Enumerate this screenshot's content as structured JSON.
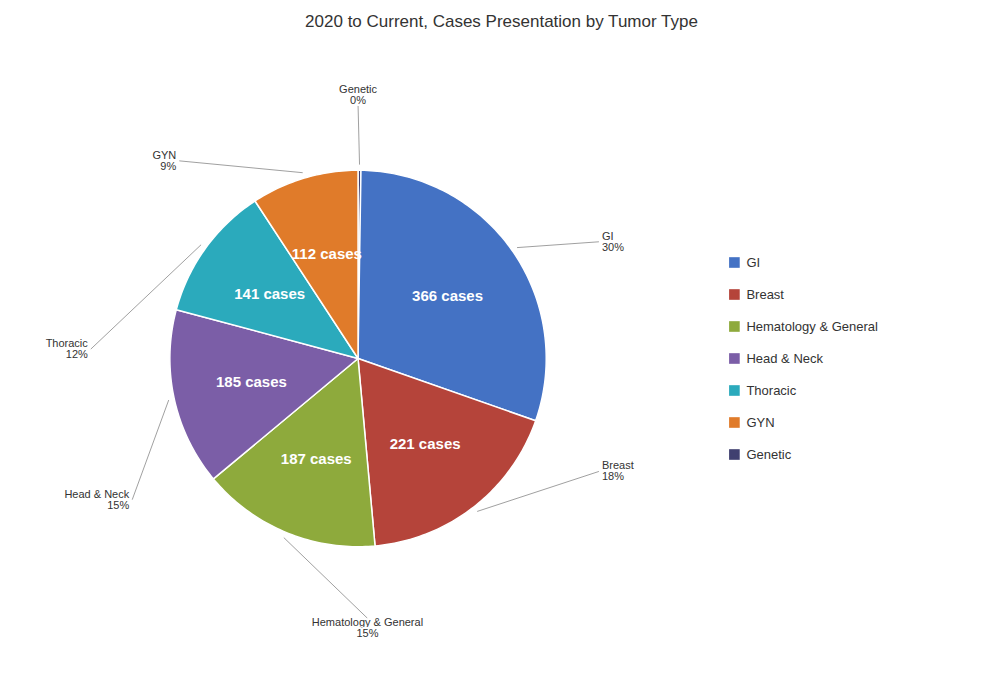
{
  "chart_data": {
    "type": "pie",
    "title": "2020 to Current, Cases Presentation by Tumor Type",
    "categories": [
      "Genetic",
      "GI",
      "Breast",
      "Hematology & General",
      "Head & Neck",
      "Thoracic",
      "GYN"
    ],
    "values": [
      3,
      366,
      221,
      187,
      185,
      141,
      112
    ],
    "value_labels": [
      null,
      "366 cases",
      "221 cases",
      "187 cases",
      "185 cases",
      "141 cases",
      "112 cases"
    ],
    "percentage_labels": [
      "0%",
      "30%",
      "18%",
      "15%",
      "15%",
      "12%",
      "9%"
    ],
    "colors": [
      "#404070",
      "#4472C4",
      "#B5443A",
      "#8EAA3C",
      "#7B5EA7",
      "#2BAABC",
      "#E07B2A"
    ],
    "data_labels": true,
    "legend": "right",
    "legend_labels": [
      "GI",
      "Breast",
      "Hematology & General",
      "Head & Neck",
      "Thoracic",
      "GYN",
      "Genetic"
    ],
    "legend_colors": [
      "#4472C4",
      "#B5443A",
      "#8EAA3C",
      "#7B5EA7",
      "#2BAABC",
      "#E07B2A",
      "#404070"
    ]
  }
}
